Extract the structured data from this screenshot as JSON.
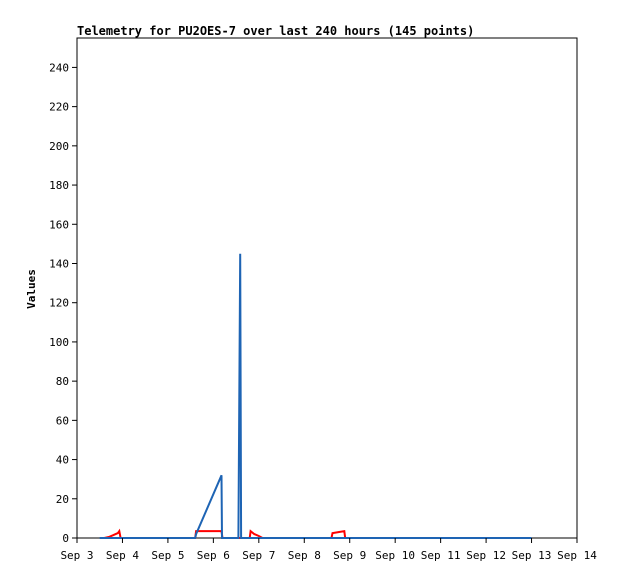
{
  "chart_data": {
    "type": "line",
    "title": "Telemetry for PU2OES-7 over last 240 hours (145 points)",
    "xlabel": "",
    "ylabel": "Values",
    "x_tick_labels": [
      "Sep 3",
      "Sep 4",
      "Sep 5",
      "Sep 6",
      "Sep 7",
      "Sep 8",
      "Sep 9",
      "Sep 10",
      "Sep 11",
      "Sep 12",
      "Sep 13",
      "Sep 14"
    ],
    "y_ticks": [
      0,
      20,
      40,
      60,
      80,
      100,
      120,
      140,
      160,
      180,
      200,
      220,
      240
    ],
    "xlim_days": [
      3,
      14
    ],
    "ylim": [
      0,
      255
    ],
    "grid": false,
    "series": [
      {
        "color": "#ff0000",
        "points": [
          [
            3.6,
            0
          ],
          [
            3.7,
            0.5
          ],
          [
            3.8,
            1.5
          ],
          [
            3.9,
            2.5
          ],
          [
            3.93,
            3.5
          ],
          [
            3.96,
            0
          ],
          [
            5.6,
            0
          ],
          [
            5.62,
            3.5
          ],
          [
            6.18,
            3.5
          ],
          [
            6.2,
            0
          ],
          [
            6.8,
            0
          ],
          [
            6.82,
            3.5
          ],
          [
            6.9,
            2
          ],
          [
            7.0,
            1
          ],
          [
            7.08,
            0
          ],
          [
            8.6,
            0
          ],
          [
            8.62,
            2.5
          ],
          [
            8.75,
            3
          ],
          [
            8.88,
            3.5
          ],
          [
            8.9,
            0
          ],
          [
            13.0,
            0
          ]
        ]
      },
      {
        "color": "#1e64b4",
        "points": [
          [
            3.5,
            0
          ],
          [
            5.6,
            0
          ],
          [
            5.62,
            2
          ],
          [
            6.18,
            32
          ],
          [
            6.19,
            0
          ],
          [
            6.55,
            0
          ],
          [
            6.57,
            72
          ],
          [
            6.59,
            145
          ],
          [
            6.61,
            0
          ],
          [
            13.0,
            0
          ]
        ]
      }
    ]
  }
}
